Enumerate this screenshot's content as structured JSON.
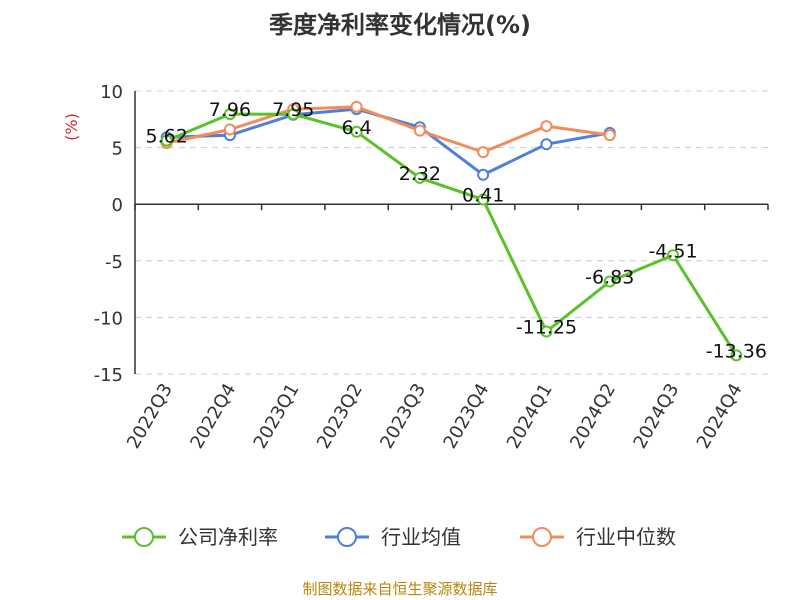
{
  "chart_data": {
    "type": "line",
    "title": "季度净利率变化情况(%)",
    "ylabel": "(%)",
    "xlabel": "",
    "ylim": [
      -15,
      10
    ],
    "yticks": [
      10,
      5,
      0,
      -5,
      -10,
      -15
    ],
    "grid": true,
    "legend_position": "bottom",
    "categories": [
      "2022Q3",
      "2022Q4",
      "2023Q1",
      "2023Q2",
      "2023Q3",
      "2023Q4",
      "2024Q1",
      "2024Q2",
      "2024Q3",
      "2024Q4"
    ],
    "series": [
      {
        "name": "公司净利率",
        "color": "#5bc12a",
        "values": [
          5.62,
          7.96,
          7.95,
          6.4,
          2.32,
          0.41,
          -11.25,
          -6.83,
          -4.51,
          -13.36
        ],
        "labels": [
          "5.62",
          "7.96",
          "7.95",
          "6.4",
          "2.32",
          "0.41",
          "-11.25",
          "-6.83",
          "-4.51",
          "-13.36"
        ]
      },
      {
        "name": "行业均值",
        "color": "#4f7fd9",
        "values": [
          5.9,
          6.1,
          7.9,
          8.4,
          6.8,
          2.6,
          5.3,
          6.3,
          null,
          null
        ]
      },
      {
        "name": "行业中位数",
        "color": "#f28c5a",
        "values": [
          5.4,
          6.6,
          8.4,
          8.6,
          6.5,
          4.6,
          6.9,
          6.1,
          null,
          null
        ]
      }
    ],
    "source": "制图数据来自恒生聚源数据库"
  }
}
